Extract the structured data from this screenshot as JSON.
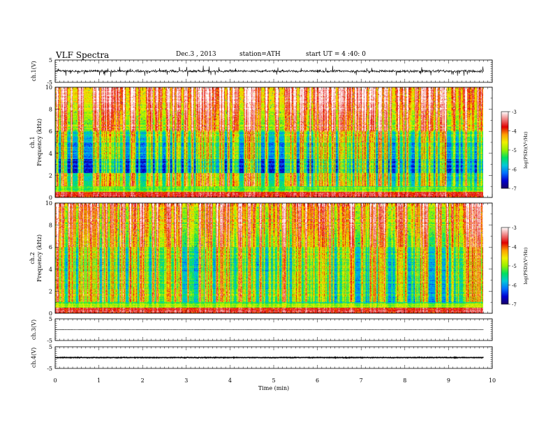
{
  "header": {
    "title": "VLF Spectra",
    "date": "Dec.3 , 2013",
    "station": "station=ATH",
    "start": "start UT = 4 :40: 0"
  },
  "colors": {
    "colormap": [
      "#1a0066",
      "#0000d0",
      "#0070ff",
      "#00c8d8",
      "#00e060",
      "#98f000",
      "#f0f000",
      "#ffa000",
      "#e00000",
      "#f08080",
      "#ffffff"
    ]
  },
  "chart_data": {
    "type": "heatmap",
    "xlabel": "Time (min)",
    "x_ticks": [
      "0",
      "1",
      "2",
      "3",
      "4",
      "5",
      "6",
      "7",
      "8",
      "9",
      "10"
    ],
    "xlim": [
      0,
      10
    ],
    "data_end_min": 9.8,
    "panels": [
      {
        "id": "ch1_waveform",
        "type": "line",
        "ylabel": "ch.1(V)",
        "ylim": [
          -5,
          5
        ],
        "y_ticks": [
          "5",
          "-5"
        ],
        "baseline": 0,
        "noise_amplitude": 1.2
      },
      {
        "id": "ch1_spectrogram",
        "type": "heatmap",
        "ylabel_channel": "ch.1",
        "ylabel": "Frequency (kHz)",
        "ylim": [
          0,
          10
        ],
        "y_ticks": [
          "0",
          "2",
          "4",
          "6",
          "8",
          "10"
        ],
        "colorbar": {
          "label": "log(PSD)(V²/Hz)",
          "range": [
            -7,
            -3
          ],
          "ticks": [
            "-3",
            "-4",
            "-5",
            "-6",
            "-7"
          ]
        },
        "step_change_min": 5.55
      },
      {
        "id": "ch2_spectrogram",
        "type": "heatmap",
        "ylabel_channel": "ch.2",
        "ylabel": "Frequency (kHz)",
        "ylim": [
          0,
          10
        ],
        "y_ticks": [
          "0",
          "2",
          "4",
          "6",
          "8",
          "10"
        ],
        "colorbar": {
          "label": "log(PSD)(V²/Hz)",
          "range": [
            -7,
            -3
          ],
          "ticks": [
            "-3",
            "-4",
            "-5",
            "-6",
            "-7"
          ]
        },
        "step_change_min": 5.55
      },
      {
        "id": "ch3_waveform",
        "type": "line",
        "ylabel": "ch.3(V)",
        "ylim": [
          -5,
          5
        ],
        "y_ticks": [
          "5",
          "-5"
        ],
        "baseline": 0,
        "noise_amplitude": 0.05
      },
      {
        "id": "ch4_waveform",
        "type": "line",
        "ylabel": "ch.4(V)",
        "ylim": [
          -5,
          5
        ],
        "y_ticks": [
          "5",
          "-5"
        ],
        "baseline": 0,
        "noise_amplitude": 0.3
      }
    ]
  }
}
